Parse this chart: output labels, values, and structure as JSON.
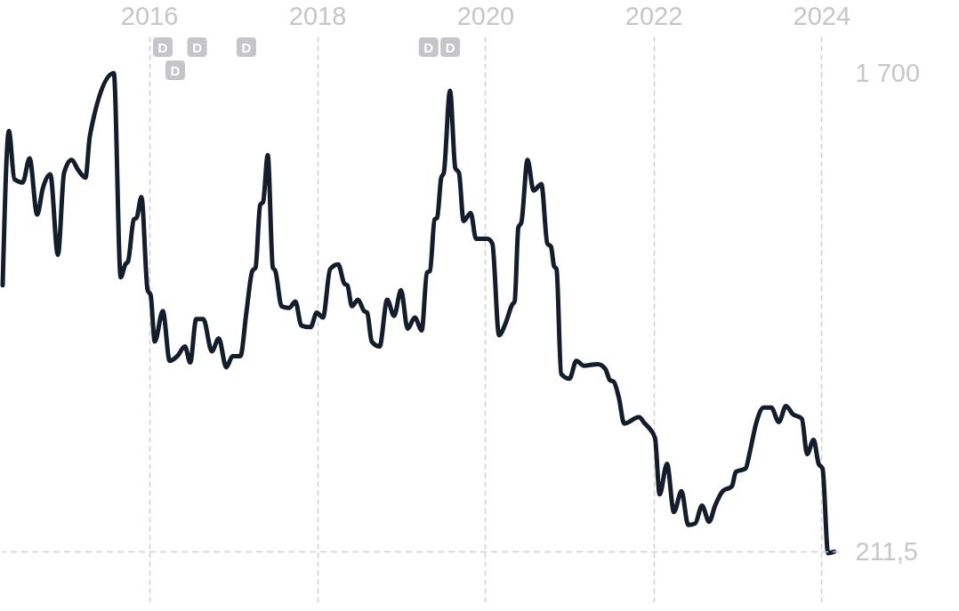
{
  "chart_data": {
    "type": "line",
    "x": [
      "2014-04-05",
      "2014-05-02",
      "2014-05-26",
      "2014-07-01",
      "2014-07-31",
      "2014-09-02",
      "2014-09-26",
      "2014-10-29",
      "2014-12-01",
      "2014-12-28",
      "2015-01-30",
      "2015-02-26",
      "2015-03-31",
      "2015-04-19",
      "2015-08-01",
      "2015-08-31",
      "2015-09-20",
      "2015-10-02",
      "2015-10-27",
      "2015-11-08",
      "2015-11-29",
      "2015-12-26",
      "2016-01-08",
      "2016-01-26",
      "2016-03-01",
      "2016-03-31",
      "2016-05-03",
      "2016-06-05",
      "2016-06-28",
      "2016-07-24",
      "2016-08-24",
      "2016-09-30",
      "2016-10-30",
      "2016-12-02",
      "2016-12-29",
      "2017-02-01",
      "2017-02-27",
      "2017-03-25",
      "2017-04-08",
      "2017-04-28",
      "2017-05-11",
      "2017-05-31",
      "2017-06-22",
      "2017-07-03",
      "2017-07-30",
      "2017-09-01",
      "2017-09-28",
      "2017-10-24",
      "2017-12-03",
      "2017-12-30",
      "2018-01-26",
      "2018-02-26",
      "2018-04-02",
      "2018-04-29",
      "2018-05-12",
      "2018-06-01",
      "2018-06-27",
      "2018-07-24",
      "2018-08-06",
      "2018-08-26",
      "2018-09-29",
      "2018-11-01",
      "2018-12-01",
      "2018-12-31",
      "2019-01-29",
      "2019-03-01",
      "2019-03-31",
      "2019-04-23",
      "2019-05-06",
      "2019-05-26",
      "2019-06-06",
      "2019-06-24",
      "2019-07-05",
      "2019-08-01",
      "2019-08-24",
      "2019-09-09",
      "2019-09-29",
      "2019-10-30",
      "2019-11-22",
      "2020-01-11",
      "2020-02-01",
      "2020-03-01",
      "2020-03-31",
      "2020-04-27",
      "2020-05-08",
      "2020-05-24",
      "2020-06-06",
      "2020-07-03",
      "2020-07-29",
      "2020-09-01",
      "2020-09-27",
      "2020-10-13",
      "2020-10-26",
      "2020-11-06",
      "2020-11-26",
      "2021-01-01",
      "2021-01-31",
      "2021-03-05",
      "2021-05-04",
      "2021-06-06",
      "2021-06-26",
      "2021-07-13",
      "2021-08-04",
      "2021-08-27",
      "2021-10-30",
      "2021-11-25",
      "2021-12-15",
      "2022-01-08",
      "2022-01-28",
      "2022-03-01",
      "2022-03-31",
      "2022-05-03",
      "2022-06-01",
      "2022-07-02",
      "2022-07-31",
      "2022-08-31",
      "2022-09-26",
      "2022-10-29",
      "2022-12-08",
      "2022-12-25",
      "2023-02-05",
      "2023-02-25",
      "2023-03-23",
      "2023-04-25",
      "2023-05-28",
      "2023-06-30",
      "2023-07-31",
      "2023-08-29",
      "2023-10-08",
      "2023-10-31",
      "2023-11-28",
      "2023-12-20",
      "2024-01-06",
      "2024-01-30",
      "2024-02-25"
    ],
    "series": [
      {
        "color": "#141d2c",
        "values": [
          1040,
          1520,
          1370,
          1360,
          1435,
          1260,
          1340,
          1385,
          1135,
          1390,
          1430,
          1400,
          1375,
          1505,
          1700,
          1065,
          1105,
          1115,
          1245,
          1250,
          1315,
          1025,
          1010,
          865,
          960,
          805,
          820,
          850,
          800,
          935,
          935,
          835,
          875,
          785,
          820,
          820,
          955,
          1085,
          1095,
          1290,
          1300,
          1445,
          1095,
          1085,
          975,
          970,
          990,
          915,
          910,
          955,
          940,
          1090,
          1105,
          1045,
          1040,
          975,
          995,
          960,
          955,
          865,
          850,
          995,
          945,
          1025,
          905,
          940,
          900,
          1080,
          1085,
          1245,
          1250,
          1375,
          1390,
          1645,
          1405,
          1390,
          1240,
          1265,
          1185,
          1185,
          1170,
          885,
          925,
          980,
          990,
          1220,
          1235,
          1430,
          1335,
          1355,
          1170,
          1160,
          1100,
          1090,
          765,
          750,
          805,
          790,
          795,
          780,
          745,
          740,
          690,
          610,
          630,
          610,
          595,
          565,
          390,
          485,
          335,
          400,
          295,
          300,
          355,
          305,
          355,
          400,
          415,
          460,
          470,
          525,
          610,
          660,
          660,
          615,
          665,
          640,
          625,
          515,
          560,
          485,
          470,
          207,
          211.5
        ]
      }
    ],
    "xlim": [
      "2014-04-05",
      "2024-03-17"
    ],
    "xticks": [
      "2016",
      "2018",
      "2020",
      "2022",
      "2024"
    ],
    "ylim": [
      55,
      1825
    ],
    "yticks": [
      {
        "value": 1700,
        "label": "1 700"
      },
      {
        "value": 211.5,
        "label": "211,5"
      }
    ],
    "grid": "x",
    "line_style": "solid",
    "ref_lines": [
      {
        "axis": "y",
        "value": 211.5,
        "color": "#cfcfd3",
        "line_style": "dashed"
      }
    ],
    "annotations": [
      {
        "text": "D",
        "x": "2016-03-01"
      },
      {
        "text": "D",
        "x": "2016-04-24"
      },
      {
        "text": "D",
        "x": "2016-07-28"
      },
      {
        "text": "D",
        "x": "2017-02-27"
      },
      {
        "text": "D",
        "x": "2019-04-30"
      },
      {
        "text": "D",
        "x": "2019-08-02"
      }
    ]
  }
}
